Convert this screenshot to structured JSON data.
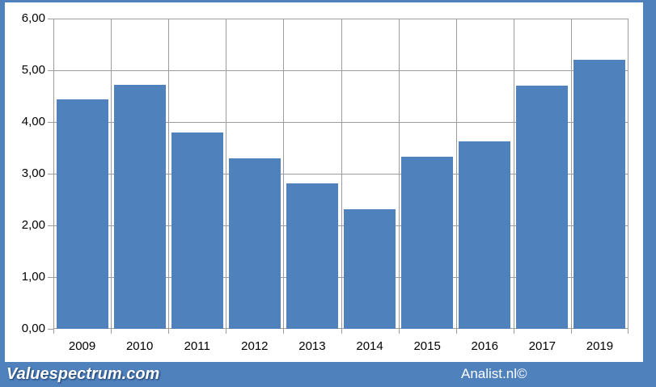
{
  "footer": {
    "left_text": "Valuespectrum.com",
    "right_text": "Analist.nl©"
  },
  "colors": {
    "bar": "#4f81bd",
    "frame_and_band": "#4f81bd",
    "chart_background": "#ffffff",
    "gridline": "#9c9c9c",
    "axis_text": "#000000",
    "footer_text": "#ffffff",
    "footer_text_shadow": "#17375e"
  },
  "chart_data": {
    "type": "bar",
    "title": "",
    "xlabel": "",
    "ylabel": "",
    "categories": [
      "2009",
      "2010",
      "2011",
      "2012",
      "2013",
      "2014",
      "2015",
      "2016",
      "2017",
      "2019"
    ],
    "values": [
      4.44,
      4.72,
      3.8,
      3.3,
      2.81,
      2.32,
      3.33,
      3.62,
      4.7,
      5.2
    ],
    "ylim": [
      0,
      6
    ],
    "ytick_interval": 1,
    "ytick_labels_top_to_bottom": [
      "6,00",
      "5,00",
      "4,00",
      "3,00",
      "2,00",
      "1,00",
      "0,00"
    ],
    "grid": true,
    "legend": "none",
    "number_format": "comma-decimal"
  }
}
